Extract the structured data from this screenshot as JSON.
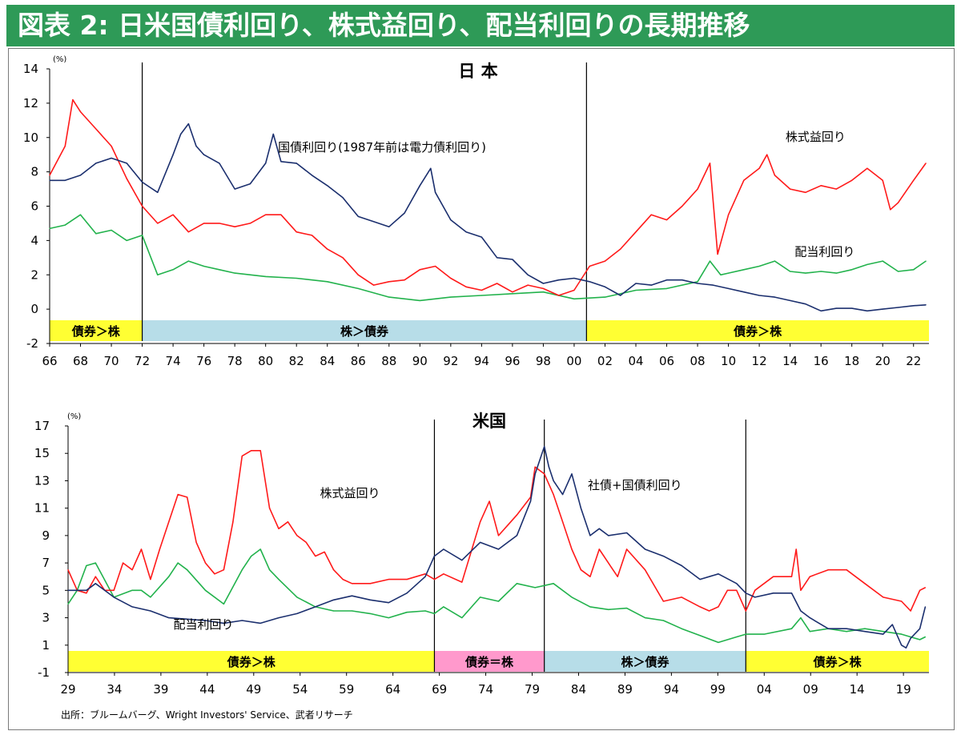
{
  "title": "図表 2: 日米国債利回り、株式益回り、配当利回りの長期推移",
  "source": "出所：ブルームバーグ、Wright Investors' Service、武者リサーチ",
  "colors": {
    "bond": "#1b2f6e",
    "earnings": "#ff1a1a",
    "dividend": "#22b24c",
    "yellow": "#ffff33",
    "blue": "#b7dde8",
    "pink": "#ff99cc",
    "title_bg": "#2e9a57"
  },
  "chart_data": [
    {
      "type": "line",
      "title": "日 本",
      "ylabel": "(%)",
      "ylim": [
        -2,
        14
      ],
      "yticks": [
        "14",
        "12",
        "10",
        "8",
        "6",
        "4",
        "2",
        "0",
        "-2"
      ],
      "xlim": [
        1966,
        2023
      ],
      "xticks": [
        "66",
        "68",
        "70",
        "72",
        "74",
        "76",
        "78",
        "80",
        "82",
        "84",
        "86",
        "88",
        "90",
        "92",
        "94",
        "96",
        "98",
        "00",
        "02",
        "04",
        "06",
        "08",
        "10",
        "12",
        "14",
        "16",
        "18",
        "20",
        "22"
      ],
      "dividers": [
        1972,
        2000.8
      ],
      "regimes": [
        {
          "label": "債券＞株",
          "from": 1966,
          "to": 1972,
          "color": "yellow"
        },
        {
          "label": "株＞債券",
          "from": 1972,
          "to": 2000.8,
          "color": "blue"
        },
        {
          "label": "債券＞株",
          "from": 2000.8,
          "to": 2023,
          "color": "yellow"
        }
      ],
      "annotations": [
        {
          "text": "国債利回り(1987年前は電力債利回り)",
          "x": 1980.8,
          "y": 9.2
        },
        {
          "text": "株式益回り",
          "x": 2013.7,
          "y": 9.8
        },
        {
          "text": "配当利回り",
          "x": 2014.3,
          "y": 3.1
        }
      ],
      "series": [
        {
          "name": "国債利回り(1987年前は電力債利回り)",
          "color": "bond",
          "x": [
            1966,
            1967,
            1968,
            1969,
            1970,
            1971,
            1972,
            1973,
            1974,
            1974.5,
            1975,
            1975.5,
            1976,
            1977,
            1978,
            1979,
            1980,
            1980.5,
            1981,
            1982,
            1983,
            1984,
            1985,
            1986,
            1987,
            1988,
            1989,
            1990,
            1990.7,
            1991,
            1992,
            1993,
            1994,
            1995,
            1996,
            1997,
            1998,
            1999,
            2000,
            2001,
            2002,
            2003,
            2004,
            2005,
            2006,
            2007,
            2008,
            2009,
            2010,
            2011,
            2012,
            2013,
            2014,
            2015,
            2016,
            2017,
            2018,
            2019,
            2020,
            2021,
            2022,
            2022.8
          ],
          "y": [
            7.5,
            7.5,
            7.8,
            8.5,
            8.8,
            8.5,
            7.4,
            6.8,
            9.0,
            10.2,
            10.8,
            9.5,
            9.0,
            8.5,
            7.0,
            7.3,
            8.5,
            10.2,
            8.6,
            8.5,
            7.8,
            7.2,
            6.5,
            5.4,
            5.1,
            4.8,
            5.6,
            7.2,
            8.2,
            6.8,
            5.2,
            4.5,
            4.2,
            3.0,
            2.9,
            2.0,
            1.5,
            1.7,
            1.8,
            1.6,
            1.3,
            0.8,
            1.5,
            1.4,
            1.7,
            1.7,
            1.5,
            1.4,
            1.2,
            1.0,
            0.8,
            0.7,
            0.5,
            0.3,
            -0.1,
            0.05,
            0.05,
            -0.1,
            0.0,
            0.1,
            0.2,
            0.25
          ]
        },
        {
          "name": "株式益回り",
          "color": "earnings",
          "x": [
            1966,
            1967,
            1967.5,
            1968,
            1969,
            1970,
            1971,
            1972,
            1973,
            1974,
            1975,
            1976,
            1977,
            1978,
            1979,
            1980,
            1981,
            1982,
            1983,
            1984,
            1985,
            1986,
            1987,
            1988,
            1989,
            1990,
            1991,
            1992,
            1993,
            1994,
            1995,
            1996,
            1997,
            1998,
            1999,
            2000,
            2001,
            2002,
            2003,
            2004,
            2005,
            2006,
            2007,
            2008,
            2008.8,
            2009.3,
            2010,
            2011,
            2012,
            2012.5,
            2013,
            2014,
            2015,
            2016,
            2017,
            2018,
            2019,
            2020,
            2020.5,
            2021,
            2022,
            2022.8
          ],
          "y": [
            7.8,
            9.5,
            12.2,
            11.5,
            10.5,
            9.5,
            7.6,
            6.0,
            5.0,
            5.5,
            4.5,
            5.0,
            5.0,
            4.8,
            5.0,
            5.5,
            5.5,
            4.5,
            4.3,
            3.5,
            3.0,
            2.0,
            1.4,
            1.6,
            1.7,
            2.3,
            2.5,
            1.8,
            1.3,
            1.1,
            1.5,
            1.0,
            1.4,
            1.2,
            0.8,
            1.1,
            2.5,
            2.8,
            3.5,
            4.5,
            5.5,
            5.2,
            6.0,
            7.0,
            8.5,
            3.2,
            5.5,
            7.5,
            8.2,
            9.0,
            7.8,
            7.0,
            6.8,
            7.2,
            7.0,
            7.5,
            8.2,
            7.5,
            5.8,
            6.2,
            7.5,
            8.5
          ]
        },
        {
          "name": "配当利回り",
          "color": "dividend",
          "x": [
            1966,
            1967,
            1968,
            1969,
            1970,
            1971,
            1972,
            1973,
            1974,
            1975,
            1976,
            1977,
            1978,
            1980,
            1982,
            1984,
            1986,
            1988,
            1990,
            1992,
            1994,
            1996,
            1998,
            2000,
            2002,
            2004,
            2006,
            2008,
            2008.8,
            2009.5,
            2010,
            2011,
            2012,
            2013,
            2014,
            2015,
            2016,
            2017,
            2018,
            2019,
            2020,
            2021,
            2022,
            2022.8
          ],
          "y": [
            4.7,
            4.9,
            5.5,
            4.4,
            4.6,
            4.0,
            4.3,
            2.0,
            2.3,
            2.8,
            2.5,
            2.3,
            2.1,
            1.9,
            1.8,
            1.6,
            1.2,
            0.7,
            0.5,
            0.7,
            0.8,
            0.9,
            1.0,
            0.6,
            0.7,
            1.1,
            1.2,
            1.6,
            2.8,
            2.0,
            2.1,
            2.3,
            2.5,
            2.8,
            2.2,
            2.1,
            2.2,
            2.1,
            2.3,
            2.6,
            2.8,
            2.2,
            2.3,
            2.8
          ]
        }
      ]
    },
    {
      "type": "line",
      "title": "米国",
      "ylabel": "(%)",
      "ylim": [
        -1,
        17
      ],
      "yticks": [
        "17",
        "15",
        "13",
        "11",
        "9",
        "7",
        "5",
        "3",
        "1",
        "-1"
      ],
      "xlim": [
        1929,
        2023
      ],
      "xticks": [
        "29",
        "34",
        "39",
        "44",
        "49",
        "54",
        "59",
        "64",
        "69",
        "74",
        "79",
        "84",
        "89",
        "94",
        "99",
        "04",
        "09",
        "14",
        "19"
      ],
      "dividers": [
        1969,
        1981,
        2003
      ],
      "regimes": [
        {
          "label": "債券＞株",
          "from": 1929,
          "to": 1969,
          "color": "yellow"
        },
        {
          "label": "債券＝株",
          "from": 1969,
          "to": 1981,
          "color": "pink"
        },
        {
          "label": "株＞債券",
          "from": 1981,
          "to": 2003,
          "color": "blue"
        },
        {
          "label": "債券＞株",
          "from": 2003,
          "to": 2023,
          "color": "yellow"
        }
      ],
      "annotations": [
        {
          "text": "社債+国債利回り",
          "x": 1883,
          "y": 0
        },
        {
          "text": "株式益回り",
          "x": 1956.5,
          "y": 11.8
        },
        {
          "text": "配当利回り",
          "x": 1940.5,
          "y": 2.2
        }
      ],
      "series": [
        {
          "name": "社債+国債利回り",
          "color": "bond",
          "x": [
            1929,
            1931,
            1932,
            1934,
            1936,
            1938,
            1940,
            1942,
            1944,
            1946,
            1948,
            1950,
            1952,
            1954,
            1956,
            1958,
            1960,
            1962,
            1964,
            1966,
            1968,
            1969,
            1970,
            1972,
            1974,
            1976,
            1978,
            1979.5,
            1980,
            1981,
            1981.5,
            1982,
            1983,
            1984,
            1985,
            1986,
            1987,
            1988,
            1990,
            1992,
            1994,
            1996,
            1998,
            2000,
            2002,
            2003,
            2004,
            2006,
            2008,
            2009,
            2010,
            2012,
            2014,
            2016,
            2018,
            2019,
            2020,
            2020.5,
            2021,
            2022,
            2022.6
          ],
          "y": [
            5.0,
            5.0,
            5.5,
            4.5,
            3.8,
            3.5,
            3.0,
            2.9,
            2.8,
            2.6,
            2.8,
            2.6,
            3.0,
            3.3,
            3.8,
            4.3,
            4.6,
            4.3,
            4.1,
            4.8,
            6.0,
            7.5,
            8.0,
            7.2,
            8.5,
            8.0,
            9.0,
            11.5,
            13.5,
            15.5,
            14.0,
            13.0,
            12.0,
            13.5,
            11.0,
            9.0,
            9.5,
            9.0,
            9.2,
            8.0,
            7.5,
            6.8,
            5.8,
            6.2,
            5.5,
            4.8,
            4.5,
            4.8,
            4.8,
            3.5,
            3.0,
            2.2,
            2.2,
            2.0,
            1.8,
            2.5,
            1.0,
            0.8,
            1.5,
            2.2,
            3.8
          ]
        },
        {
          "name": "株式益回り",
          "color": "earnings",
          "x": [
            1929,
            1930,
            1931,
            1932,
            1933,
            1934,
            1935,
            1936,
            1937,
            1938,
            1939,
            1940,
            1941,
            1942,
            1943,
            1944,
            1945,
            1946,
            1947,
            1948,
            1949,
            1950,
            1951,
            1952,
            1953,
            1954,
            1955,
            1956,
            1957,
            1958,
            1959,
            1960,
            1962,
            1964,
            1966,
            1968,
            1969,
            1970,
            1972,
            1974,
            1975,
            1976,
            1978,
            1979.5,
            1980,
            1981,
            1982,
            1983,
            1984,
            1985,
            1986,
            1987,
            1988,
            1989,
            1990,
            1992,
            1994,
            1996,
            1998,
            1999,
            2000,
            2001,
            2002,
            2003,
            2004,
            2006,
            2008,
            2008.5,
            2009,
            2010,
            2012,
            2014,
            2016,
            2018,
            2020,
            2021,
            2022,
            2022.6
          ],
          "y": [
            6.5,
            5.0,
            4.8,
            6.0,
            5.0,
            5.0,
            7.0,
            6.5,
            8.0,
            5.8,
            8.0,
            10.0,
            12.0,
            11.8,
            8.5,
            7.0,
            6.2,
            6.5,
            10.0,
            14.8,
            15.2,
            15.2,
            11.0,
            9.5,
            10.0,
            9.0,
            8.5,
            7.5,
            7.8,
            6.5,
            5.8,
            5.5,
            5.5,
            5.8,
            5.8,
            6.2,
            5.8,
            6.2,
            5.6,
            10.0,
            11.5,
            9.0,
            10.5,
            11.8,
            14.0,
            13.5,
            12.0,
            10.0,
            8.0,
            6.5,
            6.0,
            8.0,
            7.0,
            6.0,
            8.0,
            6.5,
            4.2,
            4.5,
            3.8,
            3.5,
            3.8,
            5.0,
            5.0,
            3.5,
            5.0,
            6.0,
            6.0,
            8.0,
            5.0,
            6.0,
            6.5,
            6.5,
            5.5,
            4.5,
            4.2,
            3.5,
            5.0,
            5.2
          ]
        },
        {
          "name": "配当利回り",
          "color": "dividend",
          "x": [
            1929,
            1930,
            1931,
            1932,
            1934,
            1936,
            1937,
            1938,
            1940,
            1941,
            1942,
            1944,
            1946,
            1948,
            1949,
            1950,
            1951,
            1952,
            1954,
            1956,
            1958,
            1960,
            1962,
            1964,
            1966,
            1968,
            1969,
            1970,
            1972,
            1974,
            1976,
            1978,
            1980,
            1982,
            1984,
            1986,
            1988,
            1990,
            1992,
            1994,
            1996,
            1998,
            2000,
            2002,
            2003,
            2005,
            2008,
            2009,
            2010,
            2012,
            2014,
            2016,
            2018,
            2020,
            2022,
            2022.6
          ],
          "y": [
            4.0,
            5.0,
            6.8,
            7.0,
            4.5,
            5.0,
            5.0,
            4.5,
            6.0,
            7.0,
            6.5,
            5.0,
            4.0,
            6.5,
            7.5,
            8.0,
            6.5,
            5.8,
            4.5,
            3.8,
            3.5,
            3.5,
            3.3,
            3.0,
            3.4,
            3.5,
            3.3,
            3.8,
            3.0,
            4.5,
            4.2,
            5.5,
            5.2,
            5.5,
            4.5,
            3.8,
            3.6,
            3.7,
            3.0,
            2.8,
            2.2,
            1.7,
            1.2,
            1.6,
            1.8,
            1.8,
            2.2,
            3.0,
            2.0,
            2.2,
            2.0,
            2.2,
            2.0,
            1.8,
            1.4,
            1.6
          ]
        }
      ]
    }
  ]
}
